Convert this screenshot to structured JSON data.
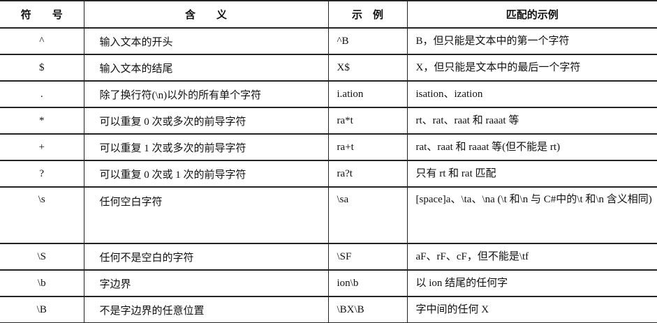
{
  "headers": [
    "符　　号",
    "含　　义",
    "示　例",
    "匹配的示例"
  ],
  "rows": [
    {
      "symbol": "^",
      "meaning": "输入文本的开头",
      "example": "^B",
      "match": "B，但只能是文本中的第一个字符"
    },
    {
      "symbol": "$",
      "meaning": "输入文本的结尾",
      "example": "X$",
      "match": "X，但只能是文本中的最后一个字符"
    },
    {
      "symbol": ".",
      "meaning": "除了换行符(\\n)以外的所有单个字符",
      "example": "i.ation",
      "match": "isation、ization"
    },
    {
      "symbol": "*",
      "meaning": "可以重复 0 次或多次的前导字符",
      "example": "ra*t",
      "match": "rt、rat、raat 和 raaat 等"
    },
    {
      "symbol": "+",
      "meaning": "可以重复 1 次或多次的前导字符",
      "example": "ra+t",
      "match": "rat、raat 和 raaat 等(但不能是 rt)"
    },
    {
      "symbol": "?",
      "meaning": "可以重复 0 次或 1 次的前导字符",
      "example": "ra?t",
      "match": "只有 rt 和 rat 匹配"
    },
    {
      "symbol": "\\s",
      "meaning": "任何空白字符",
      "example": "\\sa",
      "match": "[space]a、\\ta、\\na (\\t 和\\n 与 C#中的\\t 和\\n 含义相同)"
    },
    {
      "symbol": "\\S",
      "meaning": "任何不是空白的字符",
      "example": "\\SF",
      "match": "aF、rF、cF，但不能是\\tf"
    },
    {
      "symbol": "\\b",
      "meaning": "字边界",
      "example": "ion\\b",
      "match": "以 ion 结尾的任何字"
    },
    {
      "symbol": "\\B",
      "meaning": "不是字边界的任意位置",
      "example": "\\BX\\B",
      "match": "字中间的任何 X"
    }
  ]
}
